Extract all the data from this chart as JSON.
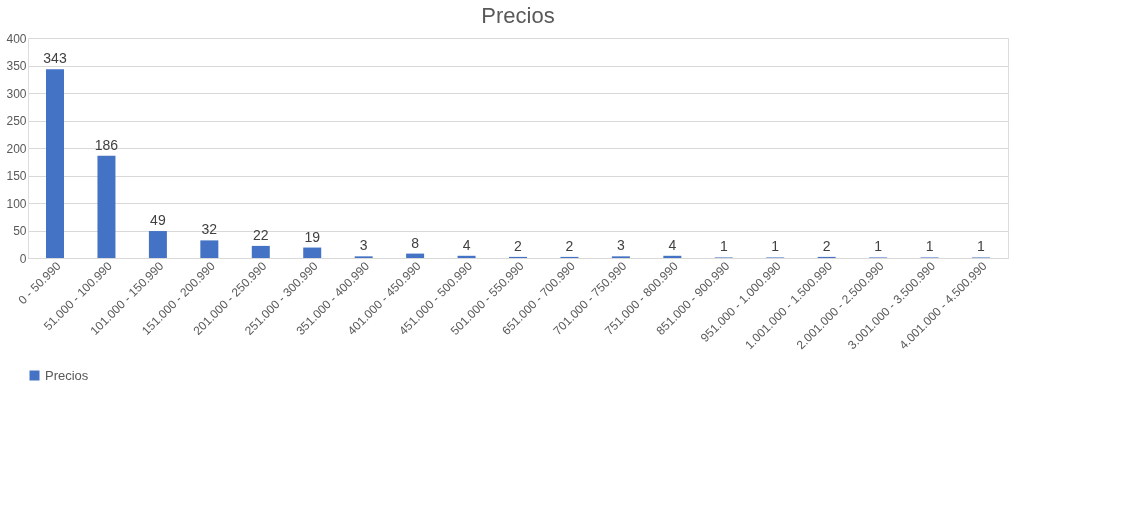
{
  "chart_data": {
    "type": "bar",
    "title": "Precios",
    "categories": [
      "0 - 50.990",
      "51.000 - 100.990",
      "101.000 - 150.990",
      "151.000 - 200.990",
      "201.000 - 250.990",
      "251.000 - 300.990",
      "351.000 - 400.990",
      "401.000 - 450.990",
      "451.000 - 500.990",
      "501.000 - 550.990",
      "651.000 - 700.990",
      "701.000 - 750.990",
      "751.000 - 800.990",
      "851.000 - 900.990",
      "951.000 - 1.000.990",
      "1.001.000 - 1.500.990",
      "2.001.000 - 2.500.990",
      "3.001.000 - 3.500.990",
      "4.001.000 - 4.500.990"
    ],
    "series": [
      {
        "name": "Precios",
        "color": "#4472c4",
        "values": [
          343,
          186,
          49,
          32,
          22,
          19,
          3,
          8,
          4,
          2,
          2,
          3,
          4,
          1,
          1,
          2,
          1,
          1,
          1
        ]
      }
    ],
    "ylim": [
      0,
      400
    ],
    "yticks": [
      0,
      50,
      100,
      150,
      200,
      250,
      300,
      350,
      400
    ],
    "grid": "y",
    "legend": "bottom",
    "data_labels": true
  }
}
